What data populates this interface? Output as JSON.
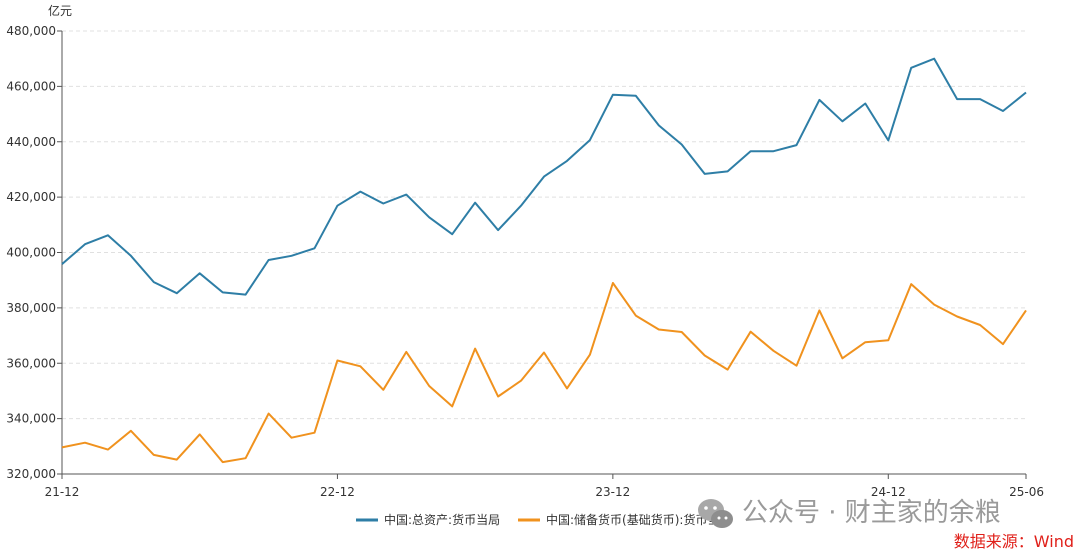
{
  "chart_data": {
    "type": "line",
    "ylabel": "亿元",
    "ylim": [
      320000,
      480000
    ],
    "yticks": [
      "480,000",
      "460,000",
      "440,000",
      "420,000",
      "400,000",
      "380,000",
      "360,000",
      "340,000",
      "320,000"
    ],
    "ytick_values": [
      480000,
      460000,
      440000,
      420000,
      400000,
      380000,
      360000,
      340000,
      320000
    ],
    "xticks": [
      {
        "label": "21-12",
        "index": 0
      },
      {
        "label": "22-12",
        "index": 12
      },
      {
        "label": "23-12",
        "index": 24
      },
      {
        "label": "24-12",
        "index": 36
      },
      {
        "label": "25-06",
        "index": 42
      }
    ],
    "grid": true,
    "legend_position": "bottom-center",
    "series": [
      {
        "name": "中国:总资产:货币当局",
        "color": "#2e7ea6",
        "values": [
          395800,
          403000,
          406200,
          398800,
          389300,
          385300,
          392500,
          385600,
          384800,
          397300,
          398800,
          401500,
          416900,
          422000,
          417700,
          420900,
          412700,
          406600,
          418000,
          408100,
          416900,
          427400,
          433100,
          440600,
          457000,
          456600,
          445900,
          439000,
          428400,
          429300,
          436600,
          436600,
          438800,
          455100,
          447400,
          453800,
          440500,
          466700,
          470000,
          455400,
          455400,
          451100,
          457800
        ]
      },
      {
        "name": "中国:储备货币(基础货币):货币当局",
        "color": "#f0921e",
        "values": [
          329600,
          331300,
          328800,
          335600,
          326900,
          325200,
          334300,
          324300,
          325700,
          341800,
          333100,
          334900,
          361000,
          358900,
          350400,
          364100,
          351800,
          344400,
          365300,
          348000,
          353700,
          363900,
          350900,
          363100,
          389000,
          377200,
          372200,
          371300,
          362800,
          357700,
          371400,
          364500,
          359100,
          379100,
          361800,
          367600,
          368300,
          388600,
          381200,
          376900,
          373800,
          366900,
          379100
        ]
      }
    ]
  },
  "watermark": "公众号 · 财主家的余粮",
  "source": "数据来源：Wind"
}
